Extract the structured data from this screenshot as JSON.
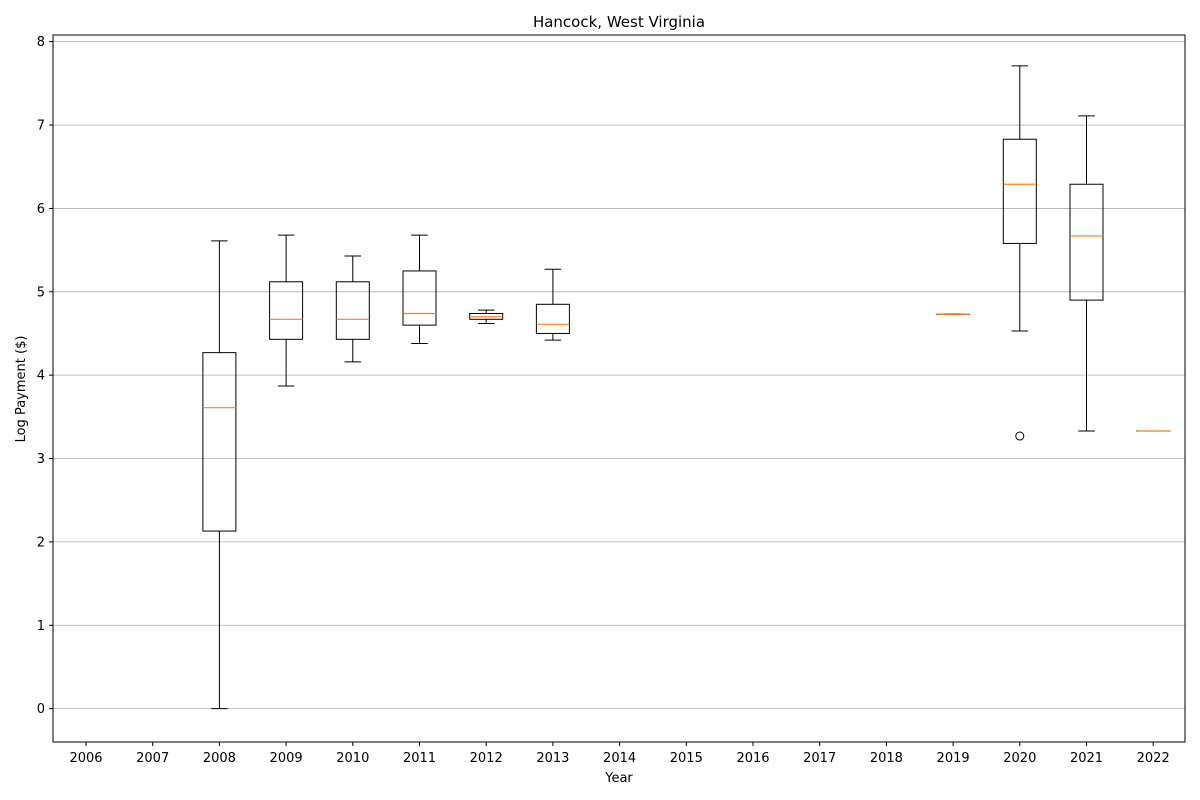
{
  "chart_data": {
    "type": "box",
    "title": "Hancock, West Virginia",
    "xlabel": "Year",
    "ylabel": "Log Payment ($)",
    "categories": [
      "2006",
      "2007",
      "2008",
      "2009",
      "2010",
      "2011",
      "2012",
      "2013",
      "2014",
      "2015",
      "2016",
      "2017",
      "2018",
      "2019",
      "2020",
      "2021",
      "2022"
    ],
    "ylim": [
      -0.4,
      8.08
    ],
    "yticks": [
      0,
      1,
      2,
      3,
      4,
      5,
      6,
      7,
      8
    ],
    "grid": "y",
    "colors": {
      "box": "#000000",
      "median": "#ff7f0e",
      "grid": "#b0b0b0"
    },
    "boxes": [
      {
        "category": "2008",
        "whisker_low": 0.0,
        "q1": 2.13,
        "median": 3.61,
        "q3": 4.27,
        "whisker_high": 5.61,
        "outliers": []
      },
      {
        "category": "2009",
        "whisker_low": 3.87,
        "q1": 4.43,
        "median": 4.67,
        "q3": 5.12,
        "whisker_high": 5.68,
        "outliers": []
      },
      {
        "category": "2010",
        "whisker_low": 4.16,
        "q1": 4.43,
        "median": 4.67,
        "q3": 5.12,
        "whisker_high": 5.43,
        "outliers": []
      },
      {
        "category": "2011",
        "whisker_low": 4.38,
        "q1": 4.6,
        "median": 4.74,
        "q3": 5.25,
        "whisker_high": 5.68,
        "outliers": []
      },
      {
        "category": "2012",
        "whisker_low": 4.62,
        "q1": 4.67,
        "median": 4.7,
        "q3": 4.74,
        "whisker_high": 4.78,
        "outliers": []
      },
      {
        "category": "2013",
        "whisker_low": 4.42,
        "q1": 4.5,
        "median": 4.61,
        "q3": 4.85,
        "whisker_high": 5.27,
        "outliers": []
      },
      {
        "category": "2019",
        "whisker_low": 4.73,
        "q1": 4.73,
        "median": 4.73,
        "q3": 4.73,
        "whisker_high": 4.73,
        "outliers": []
      },
      {
        "category": "2020",
        "whisker_low": 4.53,
        "q1": 5.58,
        "median": 6.29,
        "q3": 6.83,
        "whisker_high": 7.71,
        "outliers": [
          3.27
        ]
      },
      {
        "category": "2021",
        "whisker_low": 3.33,
        "q1": 4.9,
        "median": 5.67,
        "q3": 6.29,
        "whisker_high": 7.11,
        "outliers": []
      },
      {
        "category": "2022",
        "whisker_low": 3.33,
        "q1": 3.33,
        "median": 3.33,
        "q3": 3.33,
        "whisker_high": 3.33,
        "outliers": []
      }
    ]
  }
}
